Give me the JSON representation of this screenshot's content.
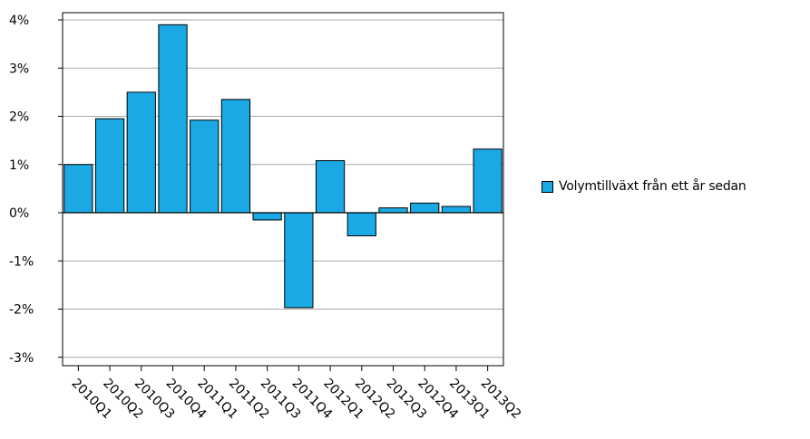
{
  "chart_data": {
    "type": "bar",
    "categories": [
      "2010Q1",
      "2010Q2",
      "2010Q3",
      "2010Q4",
      "2011Q1",
      "2011Q2",
      "2011Q3",
      "2011Q4",
      "2012Q1",
      "2012Q2",
      "2012Q3",
      "2012Q4",
      "2013Q1",
      "2013Q2"
    ],
    "series": [
      {
        "name": "Volymtillväxt från ett år sedan",
        "values": [
          1.0,
          1.95,
          2.5,
          3.9,
          1.92,
          2.35,
          -0.15,
          -1.97,
          1.08,
          -0.48,
          0.1,
          0.2,
          0.13,
          1.32
        ],
        "color": "#1aa9e4"
      }
    ],
    "ylim": [
      -3.3,
      4.1
    ],
    "yticks": [
      4,
      3,
      2,
      1,
      0,
      -1,
      -2,
      -3
    ],
    "ytick_labels": [
      "4%",
      "3%",
      "2%",
      "1%",
      "0%",
      "-1%",
      "-2%",
      "-3%"
    ],
    "grid": true,
    "legend_position": "right",
    "title": "",
    "xlabel": "",
    "ylabel": ""
  }
}
